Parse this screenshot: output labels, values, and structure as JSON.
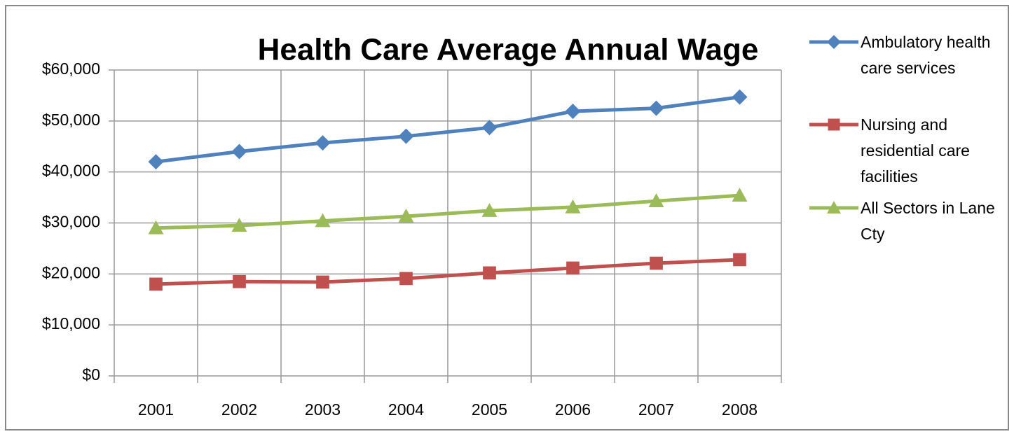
{
  "chart_data": {
    "type": "line",
    "title": "Health Care Average Annual Wage",
    "categories": [
      "2001",
      "2002",
      "2003",
      "2004",
      "2005",
      "2006",
      "2007",
      "2008"
    ],
    "series": [
      {
        "name": "Ambulatory health care services",
        "color": "#4f81bd",
        "marker": "diamond",
        "values": [
          42000,
          44000,
          45700,
          47000,
          48700,
          51900,
          52500,
          54700
        ]
      },
      {
        "name": "Nursing and residential care facilities",
        "color": "#c0504d",
        "marker": "square",
        "values": [
          18000,
          18500,
          18400,
          19100,
          20200,
          21150,
          22100,
          22800
        ]
      },
      {
        "name": "All Sectors in Lane Cty",
        "color": "#9bbb59",
        "marker": "triangle",
        "values": [
          29000,
          29500,
          30400,
          31300,
          32400,
          33100,
          34300,
          35400
        ]
      }
    ],
    "ylim": [
      0,
      60000
    ],
    "yticks": [
      {
        "value": 0,
        "label": "$0"
      },
      {
        "value": 10000,
        "label": "$10,000"
      },
      {
        "value": 20000,
        "label": "$20,000"
      },
      {
        "value": 30000,
        "label": "$30,000"
      },
      {
        "value": 40000,
        "label": "$40,000"
      },
      {
        "value": 50000,
        "label": "$50,000"
      },
      {
        "value": 60000,
        "label": "$60,000"
      }
    ],
    "grid": true,
    "legend": "right"
  }
}
